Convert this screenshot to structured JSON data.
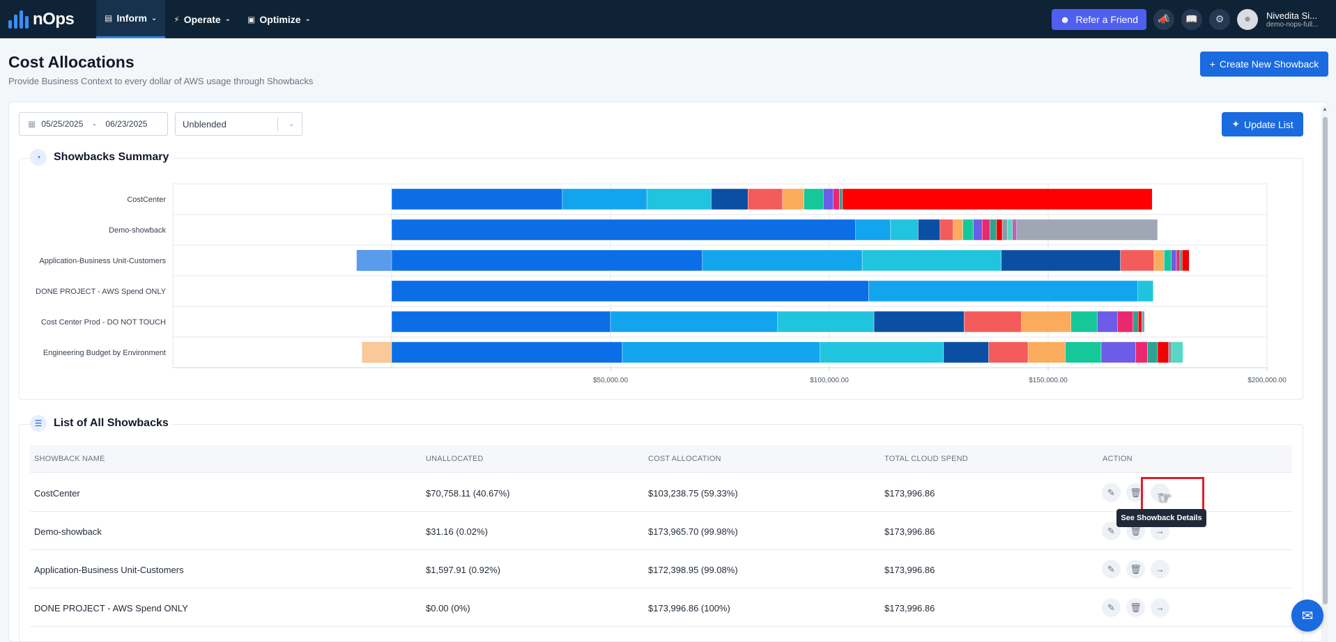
{
  "nav": {
    "logo_text": "nOps",
    "items": [
      {
        "label": "Inform",
        "icon": "bar-chart-icon",
        "active": true
      },
      {
        "label": "Operate",
        "icon": "bolt-icon",
        "active": false
      },
      {
        "label": "Optimize",
        "icon": "box-icon",
        "active": false
      }
    ],
    "refer_label": "Refer a Friend",
    "user_name": "Nivedita Si...",
    "user_sub": "demo-nops-full..."
  },
  "page": {
    "title": "Cost Allocations",
    "subtitle": "Provide Business Context to every dollar of AWS usage through Showbacks",
    "create_label": "Create New Showback"
  },
  "filters": {
    "date_start": "05/25/2025",
    "date_sep": "-",
    "date_end": "06/23/2025",
    "cost_type": "Unblended",
    "update_label": "Update List"
  },
  "summary": {
    "title": "Showbacks Summary"
  },
  "chart_data": {
    "type": "bar",
    "orientation": "horizontal",
    "stacked": true,
    "xlim": [
      -50000,
      200000
    ],
    "x_ticks": [
      50000,
      100000,
      150000,
      200000
    ],
    "x_tick_labels": [
      "$50,000.00",
      "$100,000.00",
      "$150,000.00",
      "$200,000.00"
    ],
    "grid": true,
    "categories": [
      "CostCenter",
      "Demo-showback",
      "Application-Business Unit-Customers",
      "DONE PROJECT - AWS Spend ONLY",
      "Cost Center Prod - DO NOT TOUCH",
      "Engineering Budget by Environment"
    ],
    "rows": [
      {
        "negative": [],
        "segments": [
          39000,
          19300,
          14700,
          8400,
          7900,
          4900,
          4400,
          2300,
          1400,
          700,
          70758
        ]
      },
      {
        "negative": [],
        "segments": [
          106000,
          8000,
          6300,
          5000,
          3000,
          2200,
          2400,
          2000,
          1800,
          1500,
          1300,
          1200,
          1100,
          1000,
          32196
        ]
      },
      {
        "negative": [
          -8000
        ],
        "segments": [
          71000,
          36500,
          31800,
          27200,
          7700,
          2300,
          1600,
          1200,
          800,
          500,
          1600
        ]
      },
      {
        "negative": [],
        "segments": [
          109000,
          61500,
          3500
        ]
      },
      {
        "negative": [],
        "segments": [
          50000,
          38200,
          22000,
          20600,
          13100,
          11300,
          6000,
          4600,
          3600,
          1200,
          800,
          600
        ]
      },
      {
        "negative": [
          -6800
        ],
        "segments": [
          52700,
          45200,
          28200,
          10300,
          9000,
          8500,
          8200,
          7900,
          2700,
          2300,
          2500,
          800,
          2500
        ]
      }
    ],
    "negative_colors": [
      "#f9c99a",
      "#5a9cec"
    ],
    "segment_colors": [
      "#0b6ee6",
      "#12a5ee",
      "#20c4de",
      "#0a4fa3",
      "#f45b5b",
      "#fbab5c",
      "#16c79a",
      "#6c5ce7",
      "#e9286d",
      "#2ba38e",
      "#f20000",
      "#8c9bab",
      "#55d8c1",
      "#b06ab3",
      "#9ea7b3"
    ]
  },
  "list": {
    "title": "List of All Showbacks",
    "headers": [
      "SHOWBACK NAME",
      "UNALLOCATED",
      "COST ALLOCATION",
      "TOTAL CLOUD SPEND",
      "ACTION"
    ],
    "rows": [
      {
        "name": "CostCenter",
        "unallocated": "$70,758.11 (40.67%)",
        "allocation": "$103,238.75 (59.33%)",
        "total": "$173,996.86"
      },
      {
        "name": "Demo-showback",
        "unallocated": "$31.16 (0.02%)",
        "allocation": "$173,965.70 (99.98%)",
        "total": "$173,996.86"
      },
      {
        "name": "Application-Business Unit-Customers",
        "unallocated": "$1,597.91 (0.92%)",
        "allocation": "$172,398.95 (99.08%)",
        "total": "$173,996.86"
      },
      {
        "name": "DONE PROJECT - AWS Spend ONLY",
        "unallocated": "$0.00 (0%)",
        "allocation": "$173,996.86 (100%)",
        "total": "$173,996.86"
      }
    ],
    "tooltip": "See Showback Details"
  }
}
